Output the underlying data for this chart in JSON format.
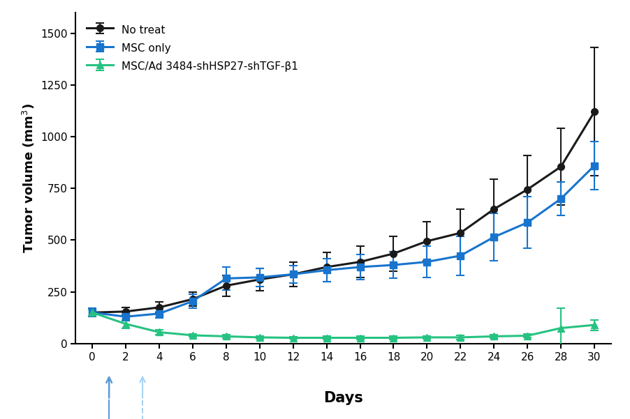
{
  "days": [
    0,
    2,
    4,
    6,
    8,
    10,
    12,
    14,
    16,
    18,
    20,
    22,
    24,
    26,
    28,
    30
  ],
  "no_treat_mean": [
    150,
    155,
    175,
    215,
    280,
    310,
    335,
    370,
    395,
    435,
    495,
    535,
    650,
    745,
    855,
    1120
  ],
  "no_treat_err": [
    20,
    18,
    25,
    35,
    50,
    55,
    60,
    70,
    75,
    85,
    95,
    115,
    145,
    165,
    185,
    310
  ],
  "msc_mean": [
    150,
    130,
    145,
    205,
    315,
    320,
    335,
    355,
    370,
    380,
    395,
    425,
    515,
    585,
    700,
    860
  ],
  "msc_err": [
    20,
    18,
    22,
    35,
    55,
    45,
    42,
    55,
    60,
    65,
    75,
    95,
    115,
    125,
    80,
    115
  ],
  "msc_ad_mean": [
    150,
    95,
    55,
    40,
    35,
    30,
    28,
    28,
    28,
    28,
    30,
    30,
    35,
    38,
    75,
    90
  ],
  "msc_ad_err": [
    15,
    20,
    12,
    8,
    8,
    7,
    6,
    7,
    7,
    8,
    8,
    9,
    8,
    9,
    95,
    25
  ],
  "no_treat_color": "#1a1a1a",
  "msc_color": "#1874CD",
  "msc_ad_color": "#26C281",
  "arrow1_day": 1,
  "arrow2_day": 3,
  "arrow1_color": "#5B9BD5",
  "arrow2_color": "#A8D4F5",
  "ylabel": "Tumor volume (mm$^3$)",
  "xlabel": "Days",
  "ylim": [
    0,
    1600
  ],
  "yticks": [
    0,
    250,
    500,
    750,
    1000,
    1250,
    1500
  ],
  "xticks": [
    0,
    2,
    4,
    6,
    8,
    10,
    12,
    14,
    16,
    18,
    20,
    22,
    24,
    26,
    28,
    30
  ],
  "legend_labels": [
    "No treat",
    "MSC only",
    "MSC/Ad 3484-shHSP27-shTGF-β1"
  ]
}
